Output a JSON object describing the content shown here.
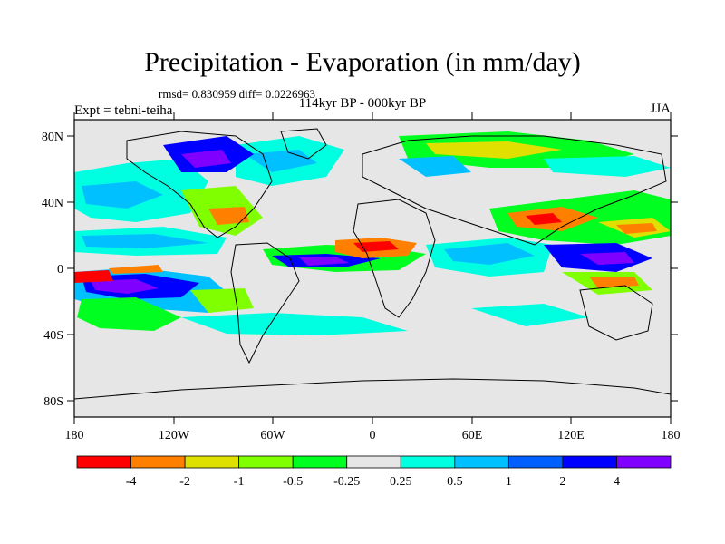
{
  "title": "Precipitation - Evaporation (in mm/day)",
  "stats": "rmsd= 0.830959 diff= 0.0226963",
  "subtitle": "114kyr BP - 000kyr BP",
  "left_label": "Expt = tebni-teiha",
  "right_label": "JJA",
  "axes": {
    "lat_ticks": [
      "80N",
      "40N",
      "0",
      "40S",
      "80S"
    ],
    "lon_ticks": [
      "180",
      "120W",
      "60W",
      "0",
      "60E",
      "120E",
      "180"
    ]
  },
  "colorbar": {
    "labels": [
      "-4",
      "-2",
      "-1",
      "-0.5",
      "-0.25",
      "0.25",
      "0.5",
      "1",
      "2",
      "4"
    ],
    "colors": [
      "#ff0000",
      "#ff8000",
      "#e0e000",
      "#80ff00",
      "#00ff20",
      "#e6e6e6",
      "#00ffe0",
      "#00c0ff",
      "#0060ff",
      "#0000ff",
      "#8000ff"
    ]
  }
}
